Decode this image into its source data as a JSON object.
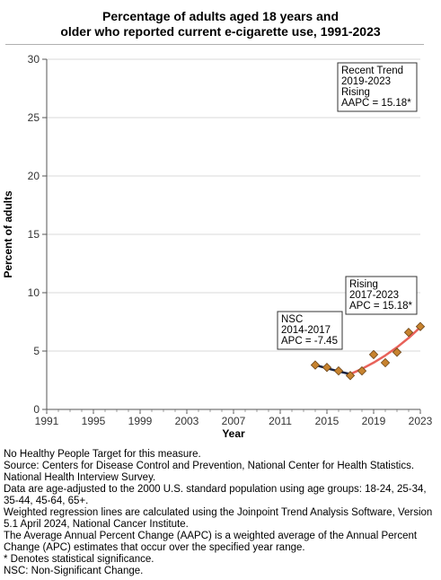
{
  "title_lines": [
    "Percentage of adults aged 18 years and",
    "older who reported current e-cigarette use, 1991-2023"
  ],
  "chart_data": {
    "type": "line",
    "title": "Percentage of adults aged 18 years and older who reported current e-cigarette use, 1991-2023",
    "xlabel": "Year",
    "ylabel": "Percent of adults",
    "xlim": [
      1991,
      2023
    ],
    "ylim": [
      0,
      30
    ],
    "x_ticks": [
      1991,
      1995,
      1999,
      2003,
      2007,
      2011,
      2015,
      2019,
      2023
    ],
    "y_ticks": [
      0,
      5,
      10,
      15,
      20,
      25,
      30
    ],
    "grid": "horizontal",
    "observed": {
      "marker": "diamond",
      "color": "#c7832f",
      "x": [
        2014,
        2015,
        2016,
        2017,
        2018,
        2019,
        2020,
        2021,
        2022,
        2023
      ],
      "y": [
        3.8,
        3.6,
        3.3,
        2.9,
        3.3,
        4.7,
        4.0,
        4.9,
        6.6,
        7.1
      ]
    },
    "trend_segments": [
      {
        "label_lines": [
          "NSC",
          "2014-2017",
          "APC = -7.45"
        ],
        "color": "#1a2340",
        "x": [
          2014,
          2015,
          2016,
          2017
        ],
        "y": [
          3.8,
          3.52,
          3.26,
          3.02
        ]
      },
      {
        "label_lines": [
          "Rising",
          "2017-2023",
          "APC = 15.18*"
        ],
        "color": "#e8625a",
        "x": [
          2017,
          2018,
          2019,
          2020,
          2021,
          2022,
          2023
        ],
        "y": [
          3.02,
          3.48,
          4.01,
          4.62,
          5.32,
          6.12,
          7.05
        ]
      }
    ],
    "recent_trend_box": [
      "Recent Trend",
      "2019-2023",
      "Rising",
      "AAPC = 15.18*"
    ]
  },
  "notes": [
    "No Healthy People Target for this measure.",
    "Source: Centers for Disease Control and Prevention, National Center for Health Statistics. National Health Interview Survey.",
    "Data are age-adjusted to the 2000 U.S. standard population using age groups: 18-24, 25-34, 35-44, 45-64, 65+.",
    "Weighted regression lines are calculated using the Joinpoint Trend Analysis Software, Version 5.1 April 2024, National Cancer Institute.",
    "The Average Annual Percent Change (AAPC) is a weighted average of the Annual Percent Change (APC) estimates that occur over the specified year range.",
    "* Denotes statistical significance.",
    "NSC: Non-Significant Change."
  ]
}
